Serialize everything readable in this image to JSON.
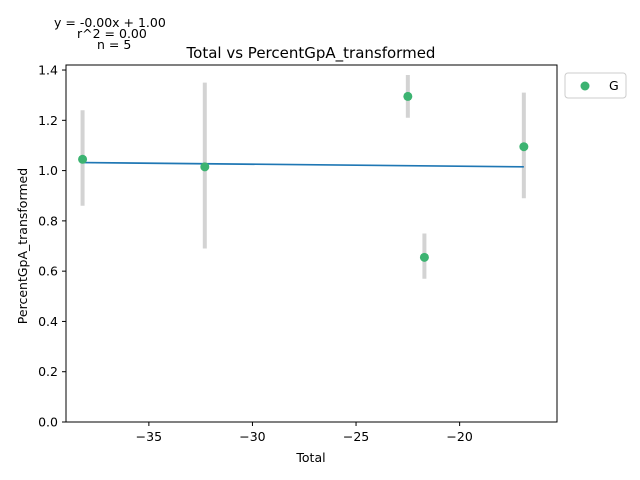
{
  "chart_data": {
    "type": "scatter",
    "title": "Total vs PercentGpA_transformed",
    "xlabel": "Total",
    "ylabel": "PercentGpA_transformed",
    "xlim": [
      -39.0,
      -15.3
    ],
    "ylim": [
      0.0,
      1.42
    ],
    "xticks": [
      -35,
      -30,
      -25,
      -20
    ],
    "xtick_labels": [
      "−35",
      "−30",
      "−25",
      "−20"
    ],
    "yticks": [
      0.0,
      0.2,
      0.4,
      0.6,
      0.8,
      1.0,
      1.2,
      1.4
    ],
    "ytick_labels": [
      "0.0",
      "0.2",
      "0.4",
      "0.6",
      "0.8",
      "1.0",
      "1.2",
      "1.4"
    ],
    "grid": false,
    "legend_position": "outside-upper-right",
    "series": [
      {
        "name": "G",
        "color": "#3cb371",
        "points": [
          {
            "x": -38.2,
            "y": 1.045,
            "err_low": 0.86,
            "err_high": 1.24
          },
          {
            "x": -32.3,
            "y": 1.015,
            "err_low": 0.69,
            "err_high": 1.35
          },
          {
            "x": -22.5,
            "y": 1.295,
            "err_low": 1.21,
            "err_high": 1.38
          },
          {
            "x": -21.7,
            "y": 0.655,
            "err_low": 0.57,
            "err_high": 0.75
          },
          {
            "x": -16.9,
            "y": 1.095,
            "err_low": 0.89,
            "err_high": 1.31
          }
        ]
      }
    ],
    "fit_line": {
      "x": [
        -38.2,
        -16.9
      ],
      "y": [
        1.032,
        1.015
      ],
      "color": "#1f77b4"
    },
    "errorbar_color": "#d3d3d3",
    "annotations": [
      "y = -0.00x + 1.00",
      "r^2 = 0.00",
      "n = 5"
    ]
  }
}
